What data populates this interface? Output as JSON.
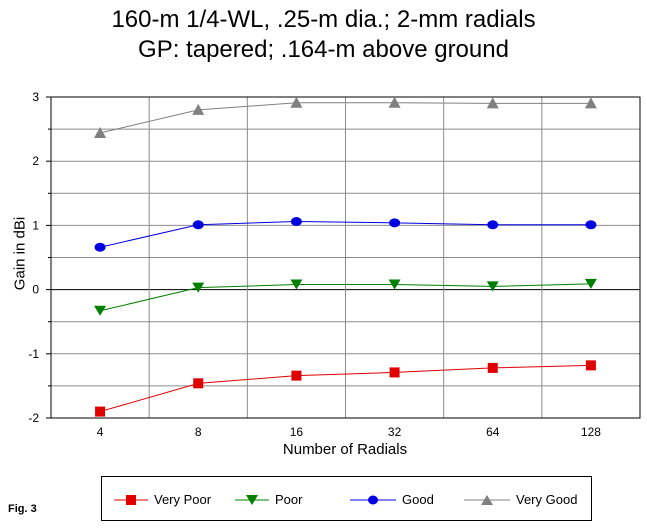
{
  "figure_label": "Fig. 3",
  "chart_data": {
    "type": "line",
    "title_lines": [
      "160-m 1/4-WL, .25-m dia.; 2-mm radials",
      "GP: tapered; .164-m above ground"
    ],
    "xlabel": "Number of Radials",
    "ylabel": "Gain in dBi",
    "categories": [
      "4",
      "8",
      "16",
      "32",
      "64",
      "128"
    ],
    "ylim": [
      -2,
      3
    ],
    "yticks": [
      "-2",
      "-1",
      "0",
      "1",
      "2",
      "3"
    ],
    "grid": true,
    "legend_position": "bottom",
    "series": [
      {
        "name": "Very Poor",
        "color": "#e00000",
        "marker": "square",
        "values": [
          -1.9,
          -1.46,
          -1.34,
          -1.29,
          -1.22,
          -1.18
        ]
      },
      {
        "name": "Poor",
        "color": "#008000",
        "marker": "triangle-down",
        "values": [
          -0.33,
          0.03,
          0.08,
          0.08,
          0.05,
          0.09
        ]
      },
      {
        "name": "Good",
        "color": "#0000e0",
        "marker": "circle",
        "values": [
          0.66,
          1.01,
          1.06,
          1.04,
          1.01,
          1.01
        ]
      },
      {
        "name": "Very Good",
        "color": "#808080",
        "marker": "triangle-up",
        "values": [
          2.44,
          2.8,
          2.91,
          2.91,
          2.9,
          2.9
        ]
      }
    ]
  }
}
